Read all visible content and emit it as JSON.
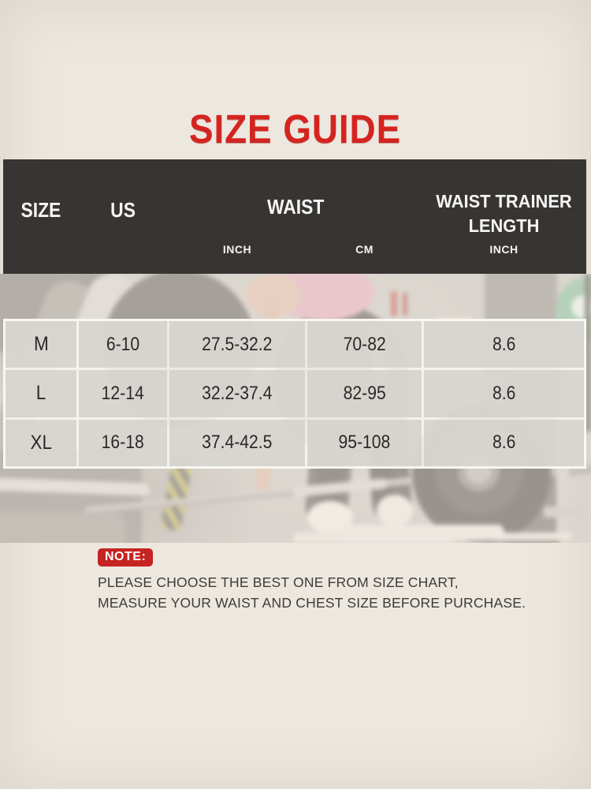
{
  "page_title": "SIZE GUIDE",
  "table": {
    "header": {
      "size": "SIZE",
      "us": "US",
      "waist": "WAIST",
      "trainer_length": "WAIST TRAINER LENGTH",
      "waist_inch_unit": "INCH",
      "waist_cm_unit": "CM",
      "length_inch_unit": "INCH"
    },
    "rows": [
      {
        "size": "M",
        "us": "6-10",
        "waist_inch": "27.5-32.2",
        "waist_cm": "70-82",
        "length_inch": "8.6"
      },
      {
        "size": "L",
        "us": "12-14",
        "waist_inch": "32.2-37.4",
        "waist_cm": "82-95",
        "length_inch": "8.6"
      },
      {
        "size": "XL",
        "us": "16-18",
        "waist_inch": "37.4-42.5",
        "waist_cm": "95-108",
        "length_inch": "8.6"
      }
    ]
  },
  "note": {
    "badge": "NOTE:",
    "line1": "PLEASE CHOOSE THE BEST ONE FROM SIZE CHART,",
    "line2": "MEASURE YOUR WAIST AND CHEST SIZE BEFORE PURCHASE."
  },
  "colors": {
    "accent_red": "#d52420",
    "note_red": "#c52422",
    "header_bg": "#373533",
    "background": "#ede8df"
  },
  "background_scene": "woman-deadlifting-barbell-in-gym-faded",
  "chart_data": {
    "type": "table",
    "title": "SIZE GUIDE",
    "columns": [
      "SIZE",
      "US",
      "WAIST INCH",
      "WAIST CM",
      "WAIST TRAINER LENGTH INCH"
    ],
    "rows": [
      [
        "M",
        "6-10",
        "27.5-32.2",
        "70-82",
        "8.6"
      ],
      [
        "L",
        "12-14",
        "32.2-37.4",
        "82-95",
        "8.6"
      ],
      [
        "XL",
        "16-18",
        "37.4-42.5",
        "95-108",
        "8.6"
      ]
    ],
    "note": "PLEASE CHOOSE THE BEST ONE FROM SIZE CHART, MEASURE YOUR WAIST AND CHEST SIZE BEFORE PURCHASE."
  }
}
